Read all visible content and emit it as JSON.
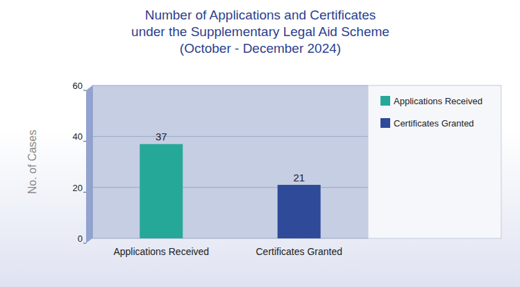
{
  "chart_data": {
    "type": "bar",
    "title": "Number of Applications and Certificates\nunder the Supplementary Legal Aid Scheme",
    "subtitle": "(October - December 2024)",
    "y_label": "No. of Cases",
    "categories": [
      "Applications Received",
      "Certificates Granted"
    ],
    "values": [
      37,
      21
    ],
    "colors": [
      "#26a898",
      "#2f4a98"
    ],
    "ylim": [
      0,
      60
    ],
    "yticks": [
      0,
      20,
      40,
      60
    ],
    "grid": true,
    "data_labels": true,
    "legend": "right"
  }
}
